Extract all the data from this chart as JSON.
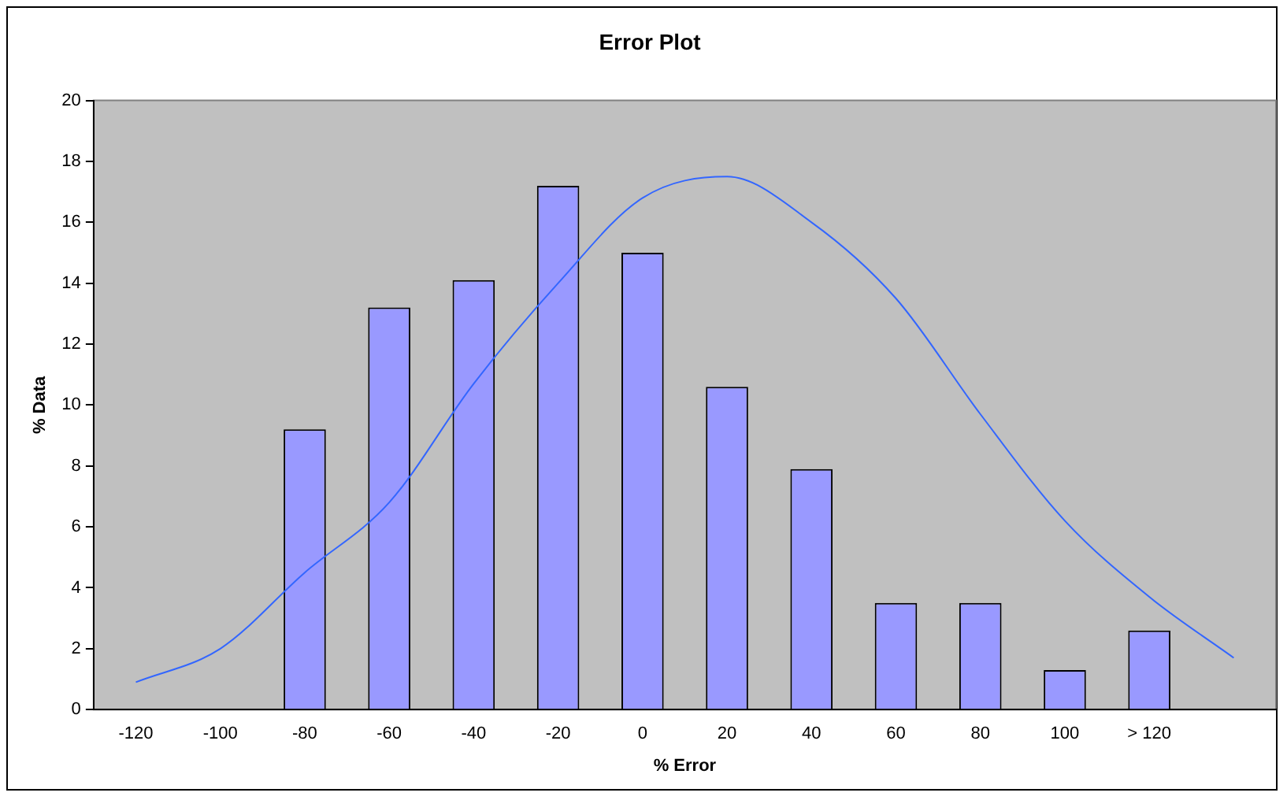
{
  "chart_data": {
    "type": "bar",
    "title": "Error Plot",
    "xlabel": "% Error",
    "ylabel": "% Data",
    "categories": [
      "-120",
      "-100",
      "-80",
      "-60",
      "-40",
      "-20",
      "0",
      "20",
      "40",
      "60",
      "80",
      "100",
      "> 120",
      null
    ],
    "series": [
      {
        "color": "#9999ff",
        "values": [
          0,
          0,
          9.2,
          13.2,
          14.1,
          17.2,
          15.0,
          10.6,
          7.9,
          3.5,
          3.5,
          1.3,
          2.6,
          0
        ]
      },
      {
        "type": "line",
        "color": "#3366ff",
        "values": [
          0.9,
          2.0,
          4.5,
          6.8,
          10.7,
          14.0,
          16.8,
          17.5,
          16.0,
          13.5,
          9.7,
          6.2,
          3.7,
          1.7
        ]
      }
    ],
    "ylim": [
      0,
      20
    ],
    "yticks": [
      0,
      2,
      4,
      6,
      8,
      10,
      12,
      14,
      16,
      18,
      20
    ],
    "grid": false,
    "legend": false,
    "marker": "none",
    "line_style": "solid"
  }
}
